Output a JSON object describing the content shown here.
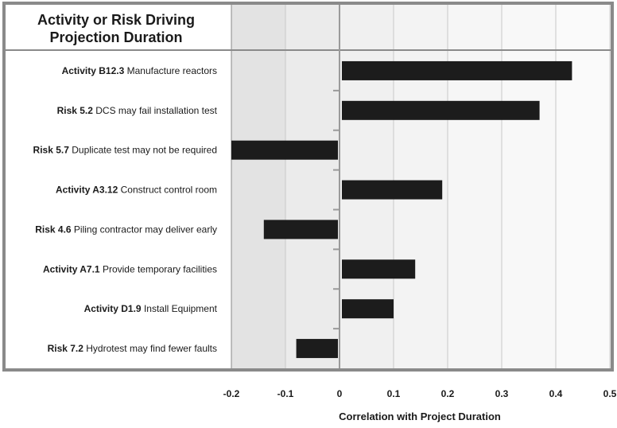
{
  "chart_data": {
    "type": "bar",
    "orientation": "horizontal",
    "title": "Activity or Risk Driving Projection Duration",
    "title_lines": [
      "Activity or Risk Driving",
      "Projection Duration"
    ],
    "xlabel": "Correlation with Project Duration",
    "xlim": [
      -0.2,
      0.5
    ],
    "xticks": [
      "-0.2",
      "-0.1",
      "0",
      "0.1",
      "0.2",
      "0.3",
      "0.4",
      "0.5"
    ],
    "xtick_values": [
      -0.2,
      -0.1,
      0,
      0.1,
      0.2,
      0.3,
      0.4,
      0.5
    ],
    "grid": true,
    "categories": [
      {
        "id": "Activity B12.3",
        "desc": "Manufacture reactors"
      },
      {
        "id": "Risk 5.2",
        "desc": "DCS may fail installation test"
      },
      {
        "id": "Risk 5.7",
        "desc": "Duplicate test may not be required"
      },
      {
        "id": "Activity A3.12",
        "desc": "Construct control room"
      },
      {
        "id": "Risk 4.6",
        "desc": "Piling contractor may deliver early"
      },
      {
        "id": "Activity A7.1",
        "desc": "Provide temporary facilities"
      },
      {
        "id": "Activity D1.9",
        "desc": "Install Equipment"
      },
      {
        "id": "Risk 7.2",
        "desc": "Hydrotest may find fewer faults"
      }
    ],
    "values": [
      0.43,
      0.37,
      -0.2,
      0.19,
      -0.14,
      0.14,
      0.1,
      -0.08
    ],
    "colors": {
      "bar": "#1c1c1c",
      "frame": "#8a8a8a",
      "band_dark": "#e4e4e4",
      "band_light": "#fafafa"
    }
  }
}
